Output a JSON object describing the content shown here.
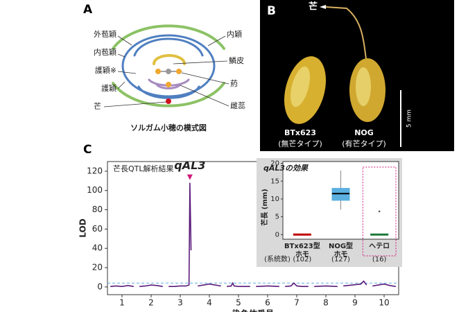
{
  "panel_a": {
    "letter": "A",
    "caption": "ソルガム小穂の模式図",
    "left_labels": [
      "外苞穎",
      "内苞穎",
      "護穎※",
      "護穎",
      "芒"
    ],
    "right_labels": [
      "内穎",
      "鱗皮",
      "葯",
      "雌蕊"
    ]
  },
  "panel_b": {
    "letter": "B",
    "awn_label": "芒",
    "scale": "5 mm",
    "samples": [
      {
        "name": "BTx623",
        "type": "(無芒タイプ)"
      },
      {
        "name": "NOG",
        "type": "(有芒タイプ)"
      }
    ]
  },
  "panel_c": {
    "letter": "C"
  },
  "chart_data": [
    {
      "type": "line",
      "title": "芒長QTL解析結果",
      "xlabel": "染色体番号",
      "ylabel": "LOD",
      "annotation": "qAL3",
      "annotation_color": "#d0187a",
      "xlim": [
        0.5,
        10.5
      ],
      "xticks": [
        1,
        2,
        3,
        4,
        5,
        6,
        7,
        8,
        9,
        10
      ],
      "ylim": [
        -8,
        130
      ],
      "yticks": [
        0,
        20,
        40,
        60,
        80,
        100,
        120
      ],
      "threshold": 4,
      "threshold_color": "#6fb6e8",
      "series": [
        {
          "name": "LOD",
          "color": "#5a1a7a",
          "x": [
            0.6,
            0.8,
            1.0,
            1.2,
            1.4,
            null,
            1.6,
            1.8,
            2.0,
            2.2,
            2.4,
            null,
            2.6,
            2.8,
            3.0,
            3.2,
            3.3,
            3.33,
            3.37,
            null,
            3.6,
            3.8,
            4.0,
            4.2,
            4.4,
            null,
            4.6,
            4.75,
            4.8,
            4.85,
            5.0,
            5.4,
            null,
            5.6,
            6.0,
            6.4,
            null,
            6.6,
            6.8,
            6.9,
            7.0,
            7.2,
            7.4,
            null,
            7.6,
            8.0,
            8.4,
            null,
            8.6,
            8.9,
            9.2,
            9.3,
            9.4,
            null,
            9.6,
            9.8,
            10.0,
            10.2,
            10.4
          ],
          "values": [
            0.5,
            1,
            0.5,
            1.5,
            0.5,
            null,
            0.5,
            1,
            2,
            1.5,
            0.5,
            null,
            0.5,
            0.5,
            1,
            1,
            2,
            108,
            38,
            null,
            1,
            2,
            3,
            2,
            1,
            null,
            0.5,
            1,
            4,
            1,
            0.5,
            0.5,
            null,
            0.5,
            1,
            0.5,
            null,
            0.5,
            1,
            4,
            1,
            0.5,
            0.5,
            null,
            0.5,
            1,
            0.5,
            null,
            1,
            2,
            3,
            6,
            2,
            null,
            1,
            2,
            3,
            1.5,
            0.5
          ]
        }
      ]
    },
    {
      "type": "box",
      "title": "qAL3の効果",
      "ylabel": "芒長 (mm)",
      "categories": [
        [
          "BTx623型",
          "ホモ"
        ],
        [
          "NOG型",
          "ホモ"
        ],
        [
          "ヘテロ"
        ]
      ],
      "n_title": "(系統数)",
      "n": [
        102,
        127,
        16
      ],
      "n_labels": [
        "(102)",
        "(127)",
        "(16)"
      ],
      "ylim": [
        -1.3,
        20.5
      ],
      "yticks": [
        0,
        5,
        10,
        15,
        20
      ],
      "boxes": [
        {
          "median": 0,
          "q1": 0,
          "q3": 0,
          "whisker_low": 0,
          "whisker_high": 0,
          "color": "#c00000"
        },
        {
          "median": 11.5,
          "q1": 9.8,
          "q3": 12.8,
          "whisker_low": 7,
          "whisker_high": 18,
          "color": "#5bb0e0"
        },
        {
          "median": 0,
          "q1": 0,
          "q3": 0,
          "whisker_low": 0,
          "whisker_high": 0,
          "outliers": [
            6.5
          ],
          "color": "#1e7a3a"
        }
      ]
    }
  ]
}
